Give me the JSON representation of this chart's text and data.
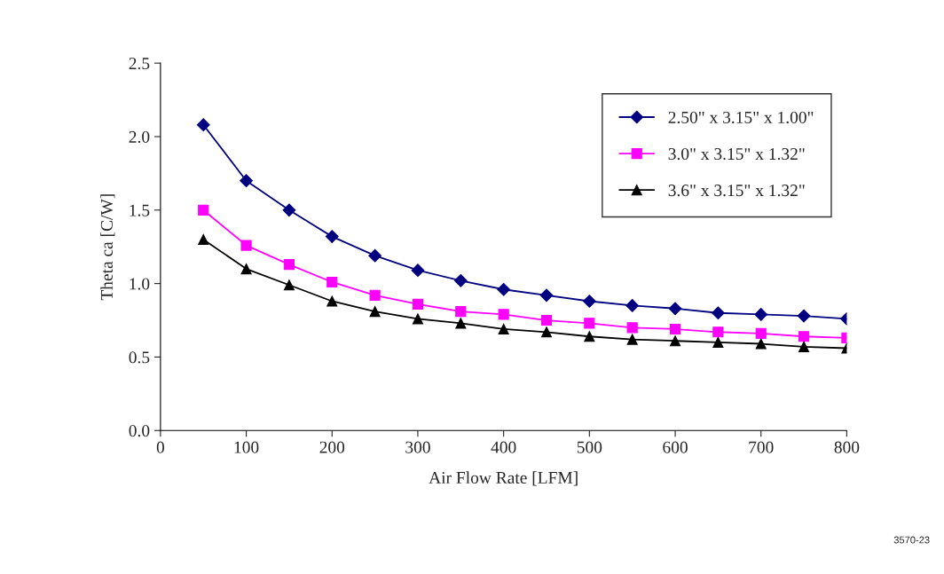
{
  "chart_data": {
    "type": "line",
    "xlabel": "Air Flow Rate [LFM]",
    "ylabel": "Theta ca [C/W]",
    "x": [
      50,
      100,
      150,
      200,
      250,
      300,
      350,
      400,
      450,
      500,
      550,
      600,
      650,
      700,
      750,
      800
    ],
    "series": [
      {
        "name": "2.50\" x 3.15\" x 1.00\"",
        "color": "#000080",
        "marker": "diamond",
        "values": [
          2.08,
          1.7,
          1.5,
          1.32,
          1.19,
          1.09,
          1.02,
          0.96,
          0.92,
          0.88,
          0.85,
          0.83,
          0.8,
          0.79,
          0.78,
          0.76
        ]
      },
      {
        "name": "3.0\" x 3.15\" x 1.32\"",
        "color": "#ff00ff",
        "marker": "square",
        "values": [
          1.5,
          1.26,
          1.13,
          1.01,
          0.92,
          0.86,
          0.81,
          0.79,
          0.75,
          0.73,
          0.7,
          0.69,
          0.67,
          0.66,
          0.64,
          0.63
        ]
      },
      {
        "name": "3.6\" x 3.15\" x 1.32\"",
        "color": "#000000",
        "marker": "triangle",
        "values": [
          1.3,
          1.1,
          0.99,
          0.88,
          0.81,
          0.76,
          0.73,
          0.69,
          0.67,
          0.64,
          0.62,
          0.61,
          0.6,
          0.59,
          0.57,
          0.56
        ]
      }
    ],
    "xlim": [
      0,
      800
    ],
    "xticks": [
      0,
      100,
      200,
      300,
      400,
      500,
      600,
      700,
      800
    ],
    "ylim": [
      0,
      2.5
    ],
    "yticks": [
      {
        "value": 0,
        "label": "0.0"
      },
      {
        "value": 0.5,
        "label": "0.5"
      },
      {
        "value": 1.0,
        "label": "1.0"
      },
      {
        "value": 1.5,
        "label": "1.5"
      },
      {
        "value": 2.0,
        "label": "2.0"
      },
      {
        "value": 2.5,
        "label": "2.5"
      }
    ],
    "grid": false,
    "legend": "top right",
    "line_style": "solid",
    "annotations": [
      "3570-23"
    ]
  }
}
